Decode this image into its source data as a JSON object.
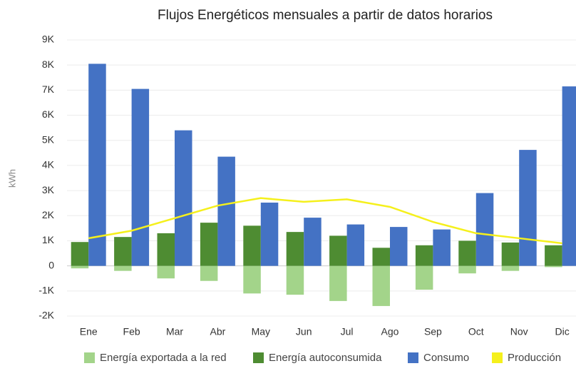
{
  "chart_data": {
    "type": "bar",
    "title": "Flujos Energéticos mensuales a partir de datos horarios",
    "y_label": "kWh",
    "categories": [
      "Ene",
      "Feb",
      "Mar",
      "Abr",
      "May",
      "Jun",
      "Jul",
      "Ago",
      "Sep",
      "Oct",
      "Nov",
      "Dic"
    ],
    "series": [
      {
        "name": "Energía exportada a la red",
        "color": "#a3d48a",
        "values": [
          -100,
          -200,
          -500,
          -600,
          -1100,
          -1150,
          -1400,
          -1600,
          -950,
          -300,
          -200,
          -50
        ]
      },
      {
        "name": "Energía autoconsumida",
        "color": "#4e8c32",
        "values": [
          950,
          1150,
          1300,
          1720,
          1600,
          1350,
          1200,
          720,
          820,
          1000,
          930,
          820
        ]
      },
      {
        "name": "Consumo",
        "color": "#4472c4",
        "values": [
          8050,
          7050,
          5400,
          4350,
          2520,
          1920,
          1650,
          1550,
          1450,
          2900,
          4620,
          7150
        ]
      },
      {
        "name": "Producción",
        "color": "#f5f01c",
        "type": "line",
        "values": [
          1100,
          1400,
          1900,
          2400,
          2700,
          2550,
          2650,
          2350,
          1750,
          1300,
          1100,
          900
        ]
      }
    ],
    "ylim": [
      -2000,
      9000
    ],
    "yticks": [
      {
        "value": -2000,
        "label": "-2K"
      },
      {
        "value": -1000,
        "label": "-1K"
      },
      0,
      {
        "value": 1000,
        "label": "1K"
      },
      {
        "value": 2000,
        "label": "2K"
      },
      {
        "value": 3000,
        "label": "3K"
      },
      {
        "value": 4000,
        "label": "4K"
      },
      {
        "value": 5000,
        "label": "5K"
      },
      {
        "value": 6000,
        "label": "6K"
      },
      {
        "value": 7000,
        "label": "7K"
      },
      {
        "value": 8000,
        "label": "8K"
      },
      {
        "value": 9000,
        "label": "9K"
      }
    ],
    "grid": true
  }
}
